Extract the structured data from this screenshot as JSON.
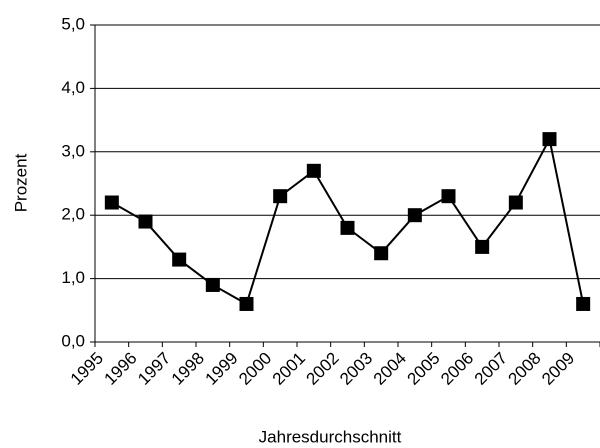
{
  "chart_data": {
    "type": "line",
    "categories": [
      "1995",
      "1996",
      "1997",
      "1998",
      "1999",
      "2000",
      "2001",
      "2002",
      "2003",
      "2004",
      "2005",
      "2006",
      "2007",
      "2008",
      "2009"
    ],
    "series": [
      {
        "name": "Prozent",
        "color": "#000000",
        "values": [
          2.2,
          1.9,
          1.3,
          0.9,
          0.6,
          2.3,
          2.7,
          1.8,
          1.4,
          2.0,
          2.3,
          1.5,
          2.2,
          3.2,
          0.6
        ]
      }
    ],
    "ylim": [
      0,
      5
    ],
    "yticks": [
      {
        "value": 0,
        "label": "0,0"
      },
      {
        "value": 1,
        "label": "1,0"
      },
      {
        "value": 2,
        "label": "2,0"
      },
      {
        "value": 3,
        "label": "3,0"
      },
      {
        "value": 4,
        "label": "4,0"
      },
      {
        "value": 5,
        "label": "5,0"
      }
    ],
    "ylabel": "Prozent",
    "xlabel": "Jahresdurchschnitt",
    "grid": true
  }
}
